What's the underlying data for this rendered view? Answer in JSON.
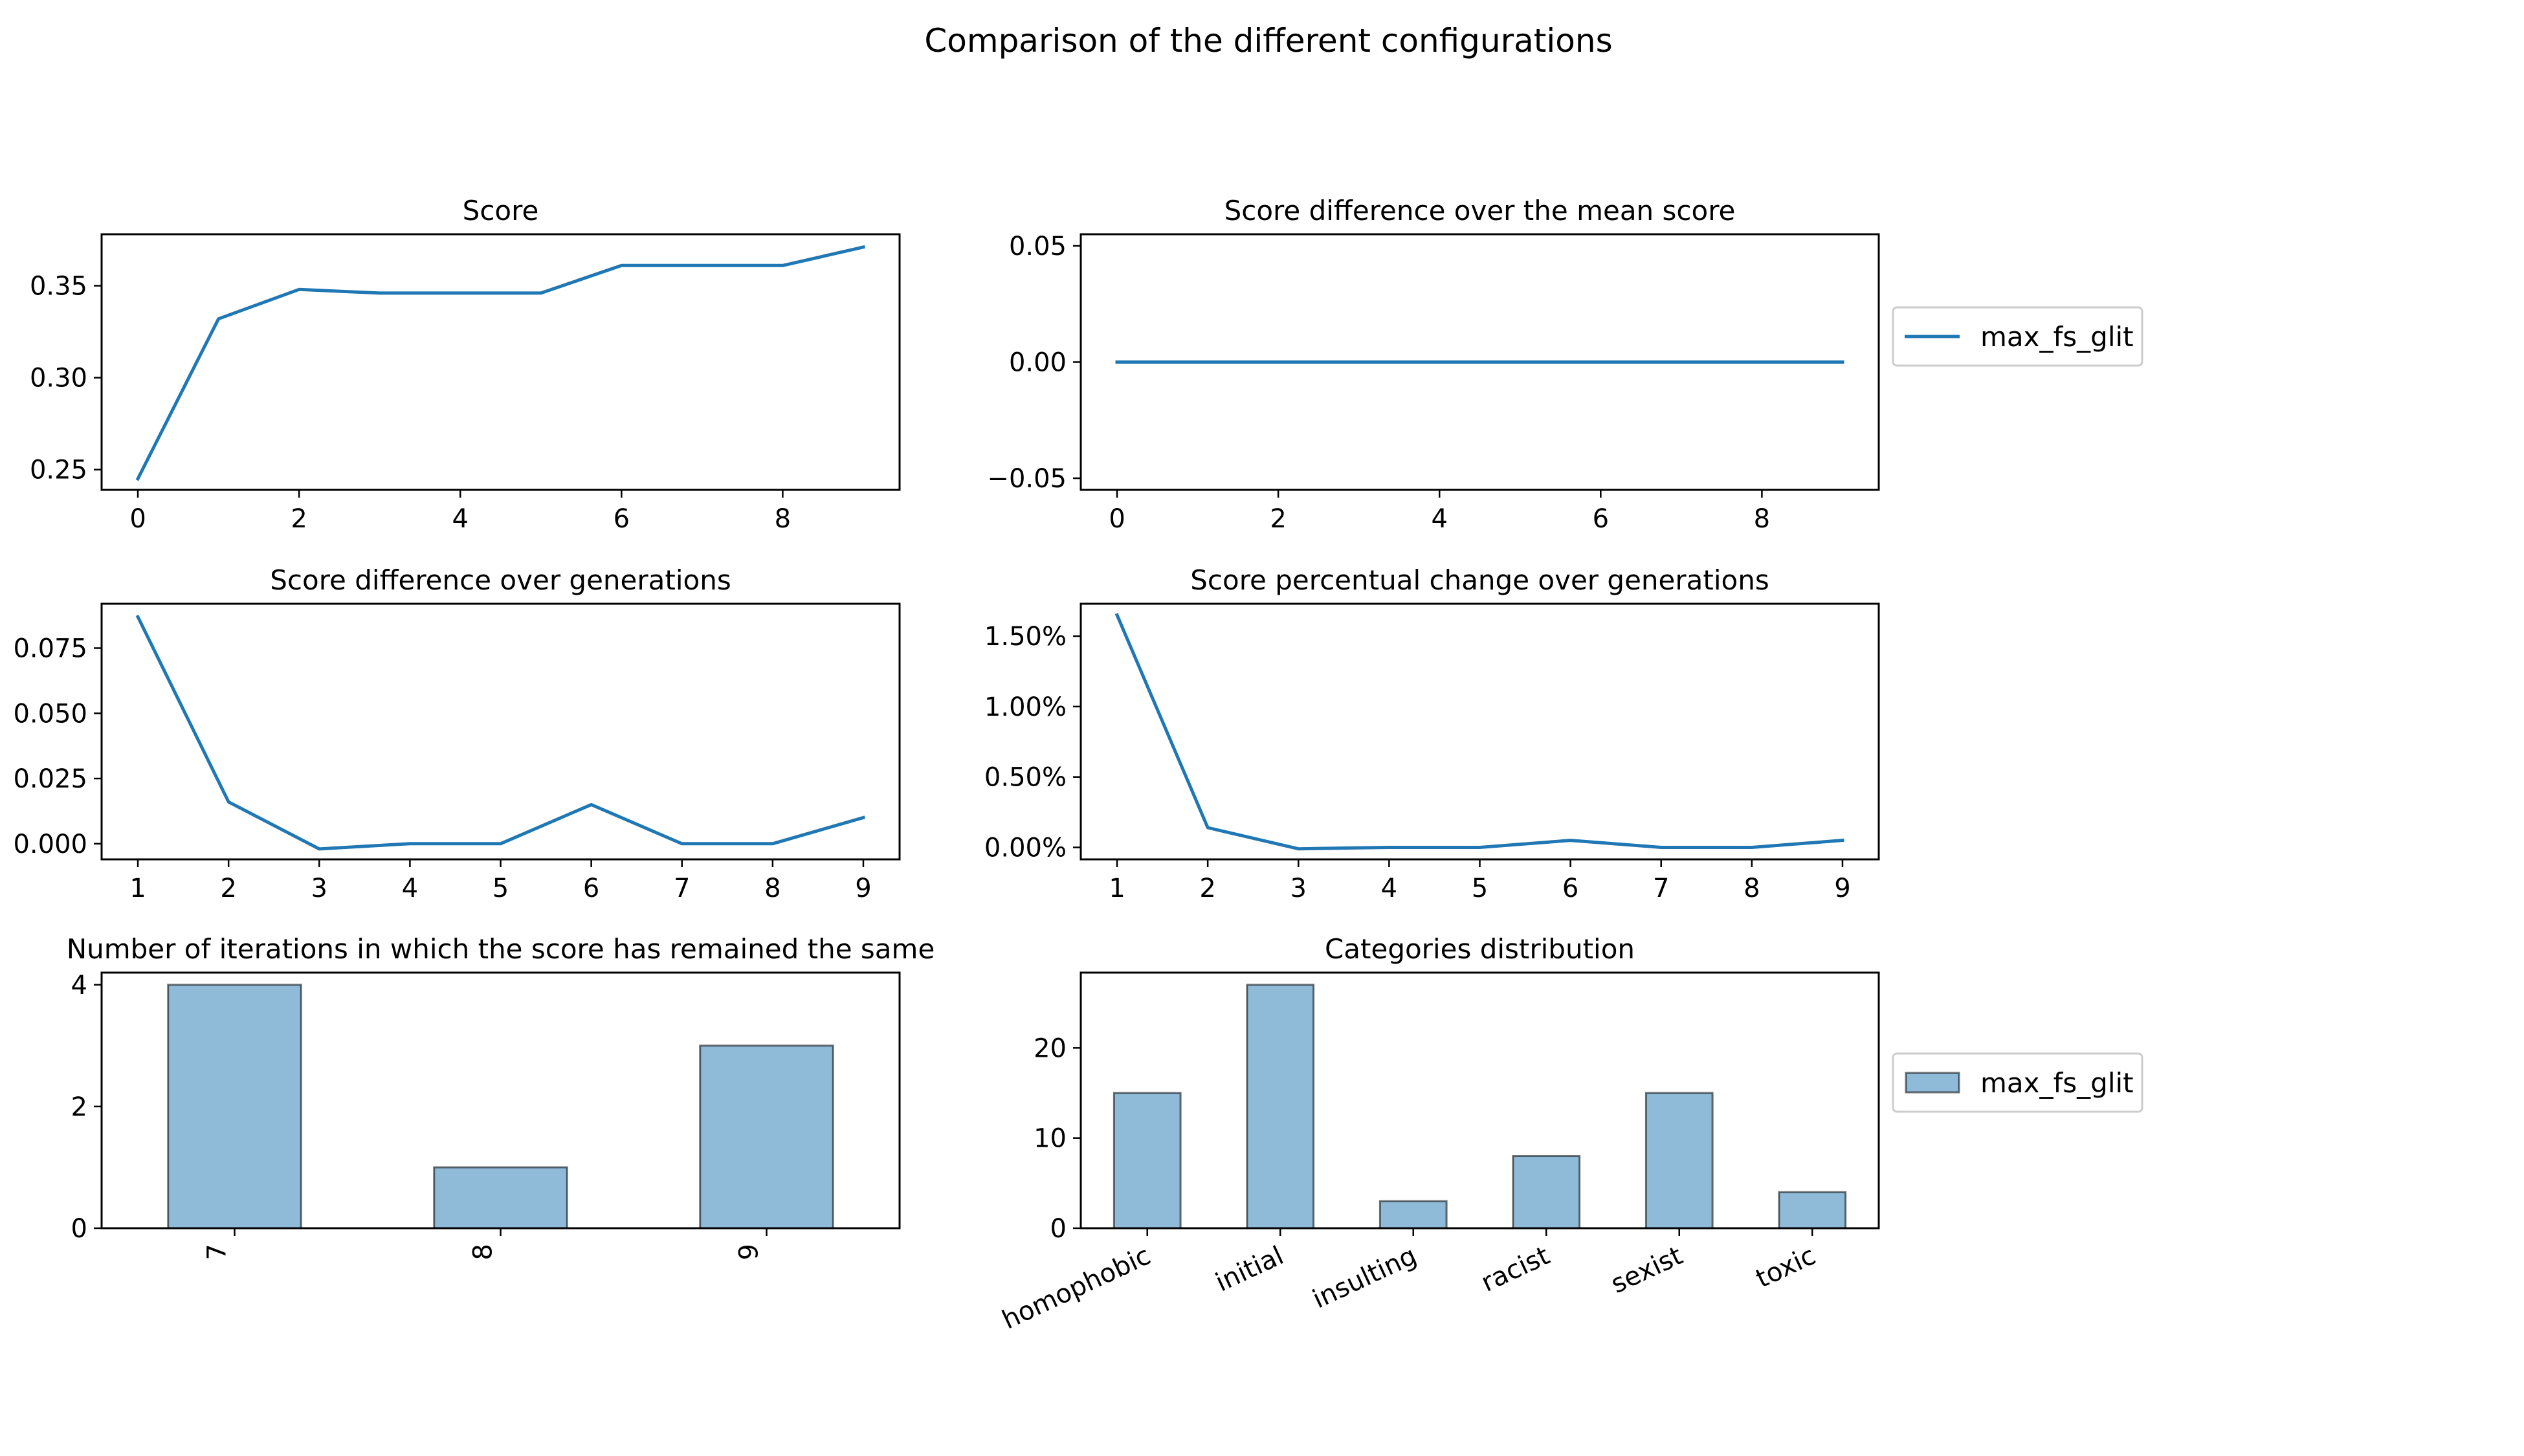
{
  "figure": {
    "suptitle": "Comparison of the different configurations",
    "series_color": "#1f77b4"
  },
  "chart_data": [
    {
      "id": "score",
      "type": "line",
      "title": "Score",
      "xlabel": "",
      "ylabel": "",
      "x": [
        0,
        1,
        2,
        3,
        4,
        5,
        6,
        7,
        8,
        9
      ],
      "series": [
        {
          "name": "max_fs_glit",
          "values": [
            0.245,
            0.332,
            0.348,
            0.346,
            0.346,
            0.346,
            0.361,
            0.361,
            0.361,
            0.371
          ]
        }
      ],
      "xlim": [
        -0.45,
        9.45
      ],
      "ylim": [
        0.239,
        0.378
      ],
      "xticks": [
        0,
        2,
        4,
        6,
        8
      ],
      "xticklabels": [
        "0",
        "2",
        "4",
        "6",
        "8"
      ],
      "yticks": [
        0.25,
        0.3,
        0.35
      ],
      "yticklabels": [
        "0.25",
        "0.30",
        "0.35"
      ],
      "legend": false
    },
    {
      "id": "diff_mean",
      "type": "line",
      "title": "Score difference over the mean score",
      "xlabel": "",
      "ylabel": "",
      "x": [
        0,
        1,
        2,
        3,
        4,
        5,
        6,
        7,
        8,
        9
      ],
      "series": [
        {
          "name": "max_fs_glit",
          "values": [
            0,
            0,
            0,
            0,
            0,
            0,
            0,
            0,
            0,
            0
          ]
        }
      ],
      "xlim": [
        -0.45,
        9.45
      ],
      "ylim": [
        -0.055,
        0.055
      ],
      "xticks": [
        0,
        2,
        4,
        6,
        8
      ],
      "xticklabels": [
        "0",
        "2",
        "4",
        "6",
        "8"
      ],
      "yticks": [
        0.05,
        0.0,
        -0.05
      ],
      "yticklabels": [
        "0.05",
        "0.00",
        "−0.05"
      ],
      "legend": true,
      "legend_placement": "right-outside"
    },
    {
      "id": "diff_gen",
      "type": "line",
      "title": "Score difference over generations",
      "xlabel": "",
      "ylabel": "",
      "x": [
        1,
        2,
        3,
        4,
        5,
        6,
        7,
        8,
        9
      ],
      "series": [
        {
          "name": "max_fs_glit",
          "values": [
            0.087,
            0.016,
            -0.002,
            0.0,
            0.0,
            0.015,
            0.0,
            0.0,
            0.01
          ]
        }
      ],
      "xlim": [
        0.6,
        9.4
      ],
      "ylim": [
        -0.006,
        0.092
      ],
      "xticks": [
        1,
        2,
        3,
        4,
        5,
        6,
        7,
        8,
        9
      ],
      "xticklabels": [
        "1",
        "2",
        "3",
        "4",
        "5",
        "6",
        "7",
        "8",
        "9"
      ],
      "yticks": [
        0.0,
        0.025,
        0.05,
        0.075
      ],
      "yticklabels": [
        "0.000",
        "0.025",
        "0.050",
        "0.075"
      ],
      "legend": false
    },
    {
      "id": "pct_change",
      "type": "line",
      "title": "Score percentual change over generations",
      "xlabel": "",
      "ylabel": "",
      "x": [
        1,
        2,
        3,
        4,
        5,
        6,
        7,
        8,
        9
      ],
      "series": [
        {
          "name": "max_fs_glit",
          "values": [
            1.65,
            0.14,
            -0.01,
            0.0,
            0.0,
            0.05,
            0.0,
            0.0,
            0.05
          ]
        }
      ],
      "xlim": [
        0.6,
        9.4
      ],
      "ylim": [
        -0.085,
        1.73
      ],
      "xticks": [
        1,
        2,
        3,
        4,
        5,
        6,
        7,
        8,
        9
      ],
      "xticklabels": [
        "1",
        "2",
        "3",
        "4",
        "5",
        "6",
        "7",
        "8",
        "9"
      ],
      "yticks": [
        0.0,
        0.5,
        1.0,
        1.5
      ],
      "yticklabels": [
        "0.00%",
        "0.50%",
        "1.00%",
        "1.50%"
      ],
      "legend": false
    },
    {
      "id": "stale_iters",
      "type": "bar",
      "title": "Number of iterations in which the score has remained the same",
      "xlabel": "",
      "ylabel": "",
      "categories": [
        "7",
        "8",
        "9"
      ],
      "series": [
        {
          "name": "max_fs_glit",
          "values": [
            4,
            1,
            3
          ]
        }
      ],
      "ylim": [
        0,
        4.2
      ],
      "yticks": [
        0,
        2,
        4
      ],
      "yticklabels": [
        "0",
        "2",
        "4"
      ],
      "xtick_rotation": -90,
      "legend": false
    },
    {
      "id": "categories",
      "type": "bar",
      "title": "Categories distribution",
      "xlabel": "",
      "ylabel": "",
      "categories": [
        "homophobic",
        "initial",
        "insulting",
        "racist",
        "sexist",
        "toxic"
      ],
      "series": [
        {
          "name": "max_fs_glit",
          "values": [
            15,
            27,
            3,
            8,
            15,
            4
          ]
        }
      ],
      "ylim": [
        0,
        28.35
      ],
      "yticks": [
        0,
        10,
        20
      ],
      "yticklabels": [
        "0",
        "10",
        "20"
      ],
      "xtick_rotation": -25,
      "legend": true,
      "legend_placement": "right-outside"
    }
  ]
}
